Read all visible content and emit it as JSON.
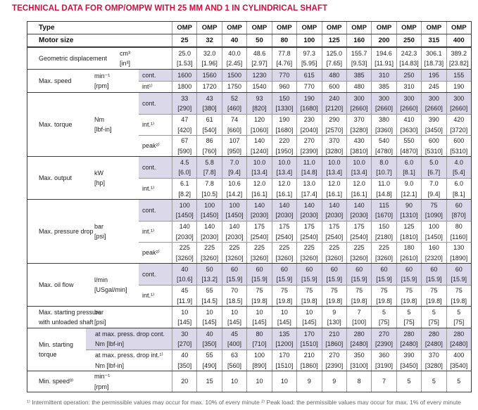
{
  "title": "TECHNICAL DATA FOR OMP/OMPW WITH 25 MM AND 1 IN CYLINDRICAL SHAFT",
  "colors": {
    "accent": "#d0103c",
    "shaded_row": "#dbd9e9",
    "border_dark": "#3b3b3b",
    "border_light": "#9a9a9a"
  },
  "footnote_clipped": "¹⁾ Intermittent operation: the permissible values may occur for max. 10% of every minute   ²⁾ Peak load: the permissible values may occur for max. 1% of every minute",
  "table": {
    "header": {
      "type_label": "Type",
      "type_values": [
        "OMP",
        "OMP",
        "OMP",
        "OMP",
        "OMP",
        "OMP",
        "OMP",
        "OMP",
        "OMP",
        "OMP",
        "OMP",
        "OMP"
      ],
      "motor_size_label": "Motor size",
      "motor_sizes": [
        "25",
        "32",
        "40",
        "50",
        "80",
        "100",
        "125",
        "160",
        "200",
        "250",
        "315",
        "400"
      ]
    },
    "sections": [
      {
        "label_lines": [
          "Geometric displacement"
        ],
        "units_lines": [
          "cm³",
          "[in³]"
        ],
        "units_offset": true,
        "rows": [
          {
            "sub_lines": [],
            "shaded": false,
            "lines": [
              [
                "25.0",
                "32.0",
                "40.0",
                "48.6",
                "77.8",
                "97.3",
                "125.0",
                "155.7",
                "194.6",
                "242.3",
                "306.1",
                "389.2"
              ],
              [
                "[1.53]",
                "[1.96]",
                "[2.45]",
                "[2.97]",
                "[4.76]",
                "[5.95]",
                "[7.65]",
                "[9.53]",
                "[11.91]",
                "[14.83]",
                "[18.73]",
                "[23.82]"
              ]
            ]
          }
        ]
      },
      {
        "label_lines": [
          "Max. speed"
        ],
        "units_lines": [
          "min⁻¹",
          "[rpm]"
        ],
        "rows": [
          {
            "sub_lines": [
              "cont."
            ],
            "shaded": true,
            "lines": [
              [
                "1600",
                "1560",
                "1500",
                "1230",
                "770",
                "615",
                "480",
                "385",
                "310",
                "250",
                "195",
                "155"
              ]
            ]
          },
          {
            "sub_lines": [
              "int¹⁾"
            ],
            "shaded": false,
            "lines": [
              [
                "1800",
                "1720",
                "1750",
                "1540",
                "960",
                "770",
                "600",
                "480",
                "385",
                "310",
                "245",
                "190"
              ]
            ]
          }
        ]
      },
      {
        "label_lines": [
          "Max. torque"
        ],
        "units_lines": [
          "Nm",
          "[lbf-in]"
        ],
        "rows": [
          {
            "sub_lines": [
              "cont."
            ],
            "shaded": true,
            "lines": [
              [
                "33",
                "43",
                "52",
                "93",
                "150",
                "190",
                "240",
                "300",
                "300",
                "300",
                "300",
                "300"
              ],
              [
                "[290]",
                "[380]",
                "[460]",
                "[820]",
                "[1330]",
                "[1680]",
                "[2120]",
                "[2660]",
                "[2660]",
                "[2660]",
                "[2660]",
                "[2660]"
              ]
            ]
          },
          {
            "sub_lines": [
              "int.¹⁾"
            ],
            "shaded": false,
            "lines": [
              [
                "47",
                "61",
                "74",
                "120",
                "190",
                "230",
                "290",
                "370",
                "380",
                "410",
                "390",
                "420"
              ],
              [
                "[420]",
                "[540]",
                "[660]",
                "[1060]",
                "[1680]",
                "[2040]",
                "[2570]",
                "[3280]",
                "[3360]",
                "[3630]",
                "[3450]",
                "[3720]"
              ]
            ]
          },
          {
            "sub_lines": [
              "peak²⁾"
            ],
            "shaded": false,
            "lines": [
              [
                "67",
                "86",
                "107",
                "140",
                "220",
                "270",
                "370",
                "430",
                "540",
                "550",
                "600",
                "600"
              ],
              [
                "[590]",
                "[760]",
                "[950]",
                "[1240]",
                "[1950]",
                "[2390]",
                "[3280]",
                "[3810]",
                "[4780]",
                "[4870]",
                "[5310]",
                "[5310]"
              ]
            ]
          }
        ]
      },
      {
        "label_lines": [
          "Max. output"
        ],
        "units_lines": [
          "kW",
          "[hp]"
        ],
        "rows": [
          {
            "sub_lines": [
              "cont."
            ],
            "shaded": true,
            "lines": [
              [
                "4.5",
                "5.8",
                "7.0",
                "10.0",
                "10.0",
                "11.0",
                "10.0",
                "10.0",
                "8.0",
                "6.0",
                "5.0",
                "4.0"
              ],
              [
                "[6.0]",
                "[7.8]",
                "[9.4]",
                "[13.4]",
                "[13.4]",
                "[14.8]",
                "[13.4]",
                "[13.4]",
                "[10.7]",
                "[8.1]",
                "[6.7]",
                "[5.4]"
              ]
            ]
          },
          {
            "sub_lines": [
              "int.¹⁾"
            ],
            "shaded": false,
            "lines": [
              [
                "6.1",
                "7.8",
                "10.6",
                "12.0",
                "12.0",
                "13.0",
                "12.0",
                "12.0",
                "11.0",
                "9.0",
                "7.0",
                "6.0"
              ],
              [
                "[8.2]",
                "[10.5]",
                "[14.2]",
                "[16.1]",
                "[16.1]",
                "[17.4]",
                "[16.1]",
                "[16.1]",
                "[14.8]",
                "[12.1]",
                "[9.4]",
                "[8.1]"
              ]
            ]
          }
        ]
      },
      {
        "label_lines": [
          "Max. pressure drop"
        ],
        "units_lines": [
          "bar",
          "[psi]"
        ],
        "rows": [
          {
            "sub_lines": [
              "cont."
            ],
            "shaded": true,
            "lines": [
              [
                "100",
                "100",
                "100",
                "140",
                "140",
                "140",
                "140",
                "140",
                "115",
                "90",
                "75",
                "60"
              ],
              [
                "[1450]",
                "[1450]",
                "[1450]",
                "[2030]",
                "[2030]",
                "[2030]",
                "[2030]",
                "[2030]",
                "[1670]",
                "[1310]",
                "[1090]",
                "[870]"
              ]
            ]
          },
          {
            "sub_lines": [
              "int.¹⁾"
            ],
            "shaded": false,
            "lines": [
              [
                "140",
                "140",
                "140",
                "175",
                "175",
                "175",
                "175",
                "175",
                "150",
                "125",
                "100",
                "80"
              ],
              [
                "[2030]",
                "[2030]",
                "[2030]",
                "[2540]",
                "[2540]",
                "[2540]",
                "[2540]",
                "[2540]",
                "[2180]",
                "[1810]",
                "[1450]",
                "[1160]"
              ]
            ]
          },
          {
            "sub_lines": [
              "peak²⁾"
            ],
            "shaded": false,
            "lines": [
              [
                "225",
                "225",
                "225",
                "225",
                "225",
                "225",
                "225",
                "225",
                "225",
                "180",
                "160",
                "130"
              ],
              [
                "[3260]",
                "[3260]",
                "[3260]",
                "[3260]",
                "[3260]",
                "[3260]",
                "[3260]",
                "[3260]",
                "[3260]",
                "[2610]",
                "[2320]",
                "[1890]"
              ]
            ]
          }
        ]
      },
      {
        "label_lines": [
          "Max. oil flow"
        ],
        "units_lines": [
          "l/min",
          "[USgal/min]"
        ],
        "rows": [
          {
            "sub_lines": [
              "cont."
            ],
            "shaded": true,
            "lines": [
              [
                "40",
                "50",
                "60",
                "60",
                "60",
                "60",
                "60",
                "60",
                "60",
                "60",
                "60",
                "60"
              ],
              [
                "[10.6]",
                "[13.2]",
                "[15.9]",
                "[15.9]",
                "[15.9]",
                "[15.9]",
                "[15.9]",
                "[15.9]",
                "[15.9]",
                "[15.9]",
                "[15.9]",
                "[15.9]"
              ]
            ]
          },
          {
            "sub_lines": [
              "int.¹⁾"
            ],
            "shaded": false,
            "lines": [
              [
                "45",
                "55",
                "70",
                "75",
                "75",
                "75",
                "75",
                "75",
                "75",
                "75",
                "75",
                "75"
              ],
              [
                "[11.9]",
                "[14.5]",
                "[18.5]",
                "[19.8]",
                "[19.8]",
                "[19.8]",
                "[19.8]",
                "[19.8]",
                "[19.8]",
                "[19.8]",
                "[19.8]",
                "[19.8]"
              ]
            ]
          }
        ]
      },
      {
        "label_lines": [
          "Max. starting pressure",
          "with unloaded shaft"
        ],
        "units_lines": [
          "bar",
          "[psi]"
        ],
        "rows": [
          {
            "sub_lines": [],
            "shaded": false,
            "lines": [
              [
                "10",
                "10",
                "10",
                "10",
                "10",
                "10",
                "9",
                "7",
                "5",
                "5",
                "5",
                "5"
              ],
              [
                "[145]",
                "[145]",
                "[145]",
                "[145]",
                "[145]",
                "[145]",
                "[130]",
                "[100]",
                "[75]",
                "[75]",
                "[75]",
                "[75]"
              ]
            ]
          }
        ]
      },
      {
        "label_lines": [
          "Min. starting",
          "torque"
        ],
        "units_lines": [],
        "sub_spans_units": true,
        "rows": [
          {
            "sub_lines": [
              "at max. press. drop cont.",
              "Nm [lbf-in]"
            ],
            "shaded": true,
            "lines": [
              [
                "30",
                "40",
                "45",
                "80",
                "135",
                "170",
                "210",
                "280",
                "270",
                "280",
                "280",
                "280"
              ],
              [
                "[270]",
                "[350]",
                "[400]",
                "[710]",
                "[1200]",
                "[1510]",
                "[1860]",
                "[2480]",
                "[2390]",
                "[2480]",
                "[2480]",
                "[2480]"
              ]
            ]
          },
          {
            "sub_lines": [
              "at max. press. drop int.¹⁾",
              "Nm [lbf-in]"
            ],
            "shaded": false,
            "lines": [
              [
                "40",
                "55",
                "63",
                "100",
                "170",
                "210",
                "270",
                "350",
                "360",
                "390",
                "370",
                "400"
              ],
              [
                "[350]",
                "[490]",
                "[560]",
                "[890]",
                "[1510]",
                "[1860]",
                "[2390]",
                "[3100]",
                "[3190]",
                "[3450]",
                "[3280]",
                "[3540]"
              ]
            ]
          }
        ]
      },
      {
        "label_lines": [
          "Min. speed³⁾"
        ],
        "units_lines": [
          "min⁻¹",
          "[rpm]"
        ],
        "rows": [
          {
            "sub_lines": [],
            "shaded": false,
            "lines": [
              [
                "20",
                "15",
                "10",
                "10",
                "10",
                "9",
                "9",
                "8",
                "7",
                "5",
                "5",
                "5"
              ]
            ]
          }
        ]
      }
    ]
  }
}
